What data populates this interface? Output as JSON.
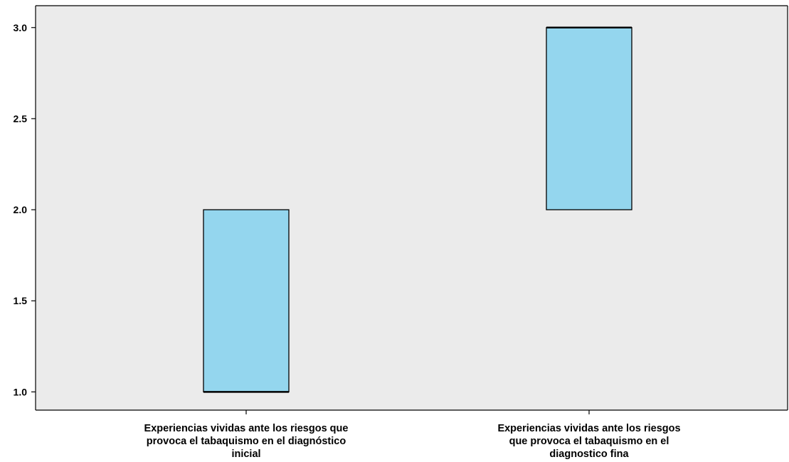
{
  "colors": {
    "plot_background": "#ebebeb",
    "box_fill": "#94d6ee",
    "box_stroke": "#000000",
    "axis": "#000000"
  },
  "chart_data": {
    "type": "boxplot",
    "title": "",
    "xlabel": "",
    "ylabel": "",
    "ylim": [
      0.9,
      3.12
    ],
    "yticks": [
      1.0,
      1.5,
      2.0,
      2.5,
      3.0
    ],
    "ytick_labels": [
      "1.0",
      "1.5",
      "2.0",
      "2.5",
      "3.0"
    ],
    "grid": false,
    "legend": "none",
    "categories": [
      "Experiencias vividas ante los riesgos que provoca el tabaquismo en el diagnóstico inicial",
      "Experiencias vividas ante los riesgos que provoca el tabaquismo en el diagnostico fina"
    ],
    "category_label_lines": [
      [
        "Experiencias vividas ante los riesgos que",
        "provoca el tabaquismo en el diagnóstico",
        "inicial"
      ],
      [
        "Experiencias vividas ante los riesgos",
        "que provoca el tabaquismo en el",
        "diagnostico fina"
      ]
    ],
    "boxes": [
      {
        "q1": 1.0,
        "median": 1.0,
        "q3": 2.0
      },
      {
        "q1": 2.0,
        "median": 3.0,
        "q3": 3.0
      }
    ]
  }
}
